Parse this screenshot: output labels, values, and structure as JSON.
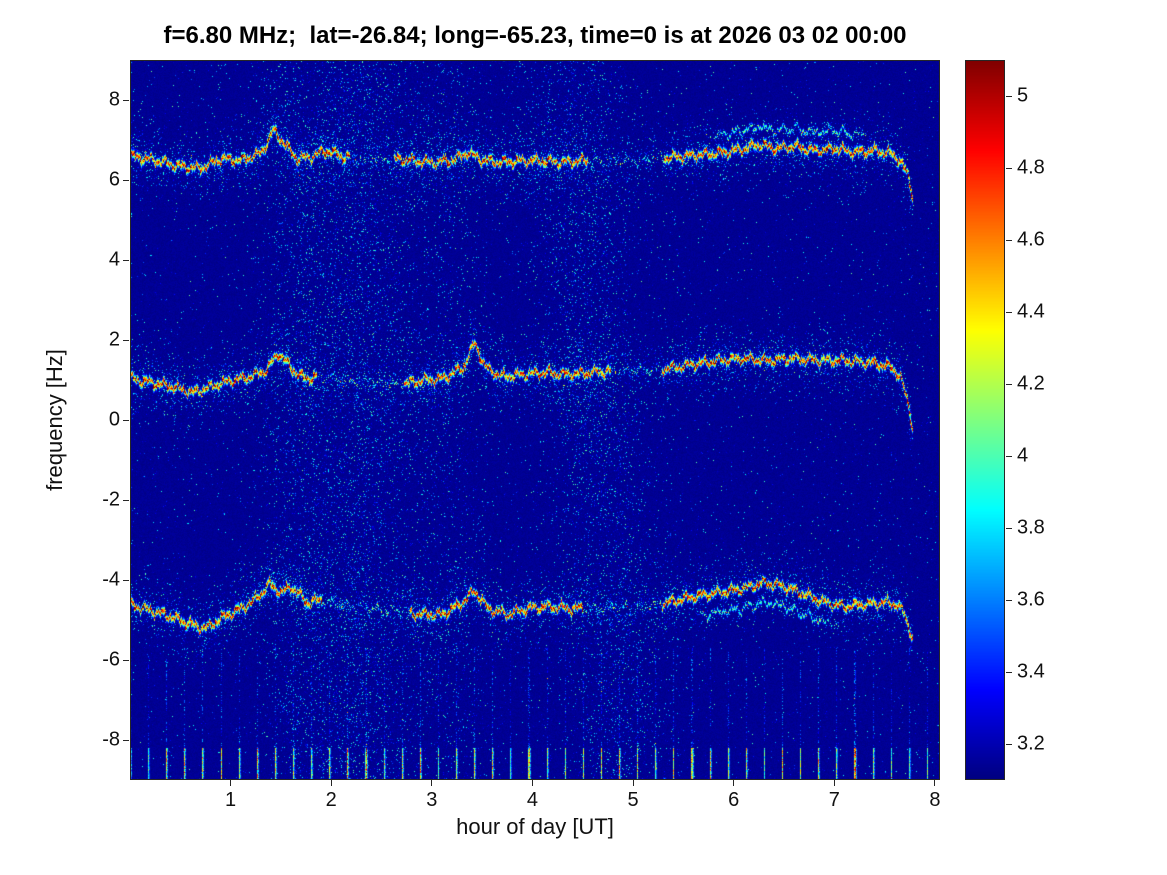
{
  "chart_data": {
    "type": "heatmap",
    "subtype": "doppler-spectrogram",
    "title": "f=6.80 MHz;  lat=-26.84; long=-65.23, time=0 is at 2026 03 02 00:00",
    "xlabel": "hour of day [UT]",
    "ylabel": "frequency [Hz]",
    "xlim": [
      0,
      8.05
    ],
    "ylim": [
      -9,
      9
    ],
    "xticks": [
      1,
      2,
      3,
      4,
      5,
      6,
      7,
      8
    ],
    "xtick_labels": [
      "1",
      "2",
      "3",
      "4",
      "5",
      "6",
      "7",
      "8"
    ],
    "yticks": [
      8,
      6,
      4,
      2,
      0,
      -2,
      -4,
      -6,
      -8
    ],
    "ytick_labels": [
      "8",
      "6",
      "4",
      "2",
      "0",
      "-2",
      "-4",
      "-6",
      "-8"
    ],
    "colormap": "jet",
    "background_value": 3.14,
    "colorbar": {
      "min": 3.1,
      "max": 5.1,
      "ticks": [
        3.2,
        3.4,
        3.6,
        3.8,
        4,
        4.2,
        4.4,
        4.6,
        4.8,
        5
      ],
      "tick_labels": [
        "3.2",
        "3.4",
        "3.6",
        "3.8",
        "4",
        "4.2",
        "4.4",
        "4.6",
        "4.8",
        "5"
      ]
    },
    "traces": [
      {
        "name": "upper trace (~+6.5 Hz)",
        "peak_value": 5.0,
        "control_points": [
          [
            0,
            6.6
          ],
          [
            0.25,
            6.5
          ],
          [
            0.5,
            6.35
          ],
          [
            0.7,
            6.3
          ],
          [
            0.9,
            6.55
          ],
          [
            1.1,
            6.5
          ],
          [
            1.3,
            6.7
          ],
          [
            1.42,
            7.25
          ],
          [
            1.52,
            6.95
          ],
          [
            1.65,
            6.55
          ],
          [
            1.8,
            6.6
          ],
          [
            1.95,
            6.75
          ],
          [
            2.1,
            6.6
          ],
          [
            2.3,
            6.5
          ],
          [
            2.55,
            6.55
          ],
          [
            2.8,
            6.5
          ],
          [
            3.0,
            6.45
          ],
          [
            3.2,
            6.5
          ],
          [
            3.35,
            6.7
          ],
          [
            3.5,
            6.5
          ],
          [
            3.7,
            6.45
          ],
          [
            3.9,
            6.5
          ],
          [
            4.1,
            6.5
          ],
          [
            4.3,
            6.45
          ],
          [
            4.5,
            6.5
          ],
          [
            4.75,
            6.45
          ],
          [
            5.0,
            6.5
          ],
          [
            5.25,
            6.55
          ],
          [
            5.45,
            6.6
          ],
          [
            5.7,
            6.65
          ],
          [
            5.9,
            6.7
          ],
          [
            6.1,
            6.8
          ],
          [
            6.25,
            6.9
          ],
          [
            6.4,
            6.8
          ],
          [
            6.6,
            6.85
          ],
          [
            6.8,
            6.75
          ],
          [
            7.0,
            6.8
          ],
          [
            7.2,
            6.7
          ],
          [
            7.4,
            6.75
          ],
          [
            7.55,
            6.68
          ],
          [
            7.65,
            6.5
          ],
          [
            7.72,
            6.15
          ],
          [
            7.78,
            5.55
          ]
        ],
        "gaps": [
          [
            2.18,
            2.62
          ],
          [
            4.55,
            5.3
          ]
        ],
        "branches": [
          {
            "start": 5.75,
            "end": 7.35,
            "offset_hz": 0.45
          }
        ]
      },
      {
        "name": "middle trace (~+1 Hz)",
        "peak_value": 5.0,
        "control_points": [
          [
            0,
            1.05
          ],
          [
            0.2,
            0.95
          ],
          [
            0.4,
            0.85
          ],
          [
            0.62,
            0.7
          ],
          [
            0.8,
            0.85
          ],
          [
            1.0,
            1.0
          ],
          [
            1.2,
            1.1
          ],
          [
            1.35,
            1.25
          ],
          [
            1.47,
            1.7
          ],
          [
            1.58,
            1.35
          ],
          [
            1.72,
            1.05
          ],
          [
            1.9,
            1.1
          ],
          [
            2.1,
            1.0
          ],
          [
            2.4,
            0.95
          ],
          [
            2.7,
            0.9
          ],
          [
            2.9,
            1.0
          ],
          [
            3.1,
            1.05
          ],
          [
            3.3,
            1.3
          ],
          [
            3.42,
            1.95
          ],
          [
            3.52,
            1.35
          ],
          [
            3.68,
            1.1
          ],
          [
            3.9,
            1.15
          ],
          [
            4.1,
            1.2
          ],
          [
            4.35,
            1.15
          ],
          [
            4.6,
            1.2
          ],
          [
            4.85,
            1.25
          ],
          [
            5.1,
            1.25
          ],
          [
            5.35,
            1.3
          ],
          [
            5.6,
            1.4
          ],
          [
            5.85,
            1.5
          ],
          [
            6.1,
            1.55
          ],
          [
            6.35,
            1.5
          ],
          [
            6.6,
            1.55
          ],
          [
            6.85,
            1.5
          ],
          [
            7.1,
            1.5
          ],
          [
            7.35,
            1.45
          ],
          [
            7.55,
            1.35
          ],
          [
            7.65,
            1.1
          ],
          [
            7.73,
            0.4
          ],
          [
            7.78,
            -0.3
          ]
        ],
        "gaps": [
          [
            1.85,
            2.72
          ],
          [
            4.78,
            5.28
          ]
        ],
        "branches": []
      },
      {
        "name": "lower trace (~-4.7 Hz)",
        "peak_value": 5.0,
        "control_points": [
          [
            0,
            -4.6
          ],
          [
            0.2,
            -4.75
          ],
          [
            0.4,
            -4.9
          ],
          [
            0.6,
            -5.1
          ],
          [
            0.75,
            -5.2
          ],
          [
            0.9,
            -4.95
          ],
          [
            1.1,
            -4.7
          ],
          [
            1.25,
            -4.45
          ],
          [
            1.38,
            -4.1
          ],
          [
            1.5,
            -4.3
          ],
          [
            1.6,
            -4.15
          ],
          [
            1.75,
            -4.55
          ],
          [
            1.9,
            -4.5
          ],
          [
            2.1,
            -4.6
          ],
          [
            2.4,
            -4.7
          ],
          [
            2.7,
            -4.8
          ],
          [
            2.9,
            -4.85
          ],
          [
            3.1,
            -4.85
          ],
          [
            3.3,
            -4.55
          ],
          [
            3.42,
            -4.25
          ],
          [
            3.55,
            -4.7
          ],
          [
            3.75,
            -4.85
          ],
          [
            3.95,
            -4.7
          ],
          [
            4.15,
            -4.65
          ],
          [
            4.35,
            -4.7
          ],
          [
            4.6,
            -4.7
          ],
          [
            4.85,
            -4.7
          ],
          [
            5.1,
            -4.65
          ],
          [
            5.35,
            -4.55
          ],
          [
            5.6,
            -4.4
          ],
          [
            5.85,
            -4.3
          ],
          [
            6.1,
            -4.2
          ],
          [
            6.3,
            -4.05
          ],
          [
            6.5,
            -4.15
          ],
          [
            6.7,
            -4.35
          ],
          [
            6.9,
            -4.55
          ],
          [
            7.1,
            -4.65
          ],
          [
            7.3,
            -4.6
          ],
          [
            7.5,
            -4.55
          ],
          [
            7.62,
            -4.6
          ],
          [
            7.7,
            -4.9
          ],
          [
            7.78,
            -5.5
          ]
        ],
        "gaps": [
          [
            1.9,
            2.78
          ],
          [
            4.5,
            5.28
          ]
        ],
        "branches": [
          {
            "start": 5.55,
            "end": 7.05,
            "offset_hz": -0.5
          }
        ]
      }
    ],
    "noise": {
      "base_density": 0.012,
      "streaks": [
        {
          "hour": 2.2,
          "sigma": 0.42,
          "density": 0.1,
          "slope": 0
        },
        {
          "hour": 1.62,
          "sigma": 0.18,
          "density": 0.04,
          "slope": 0
        },
        {
          "hour": 3.15,
          "sigma": 0.22,
          "density": 0.035,
          "slope": 0.1
        },
        {
          "hour": 4.35,
          "sigma": 0.3,
          "density": 0.09,
          "slope": 0.55
        }
      ],
      "comb": {
        "spacing_hours": 0.18,
        "bright_top_freq": -8.2,
        "faint_top_freq": -5.7
      }
    }
  }
}
